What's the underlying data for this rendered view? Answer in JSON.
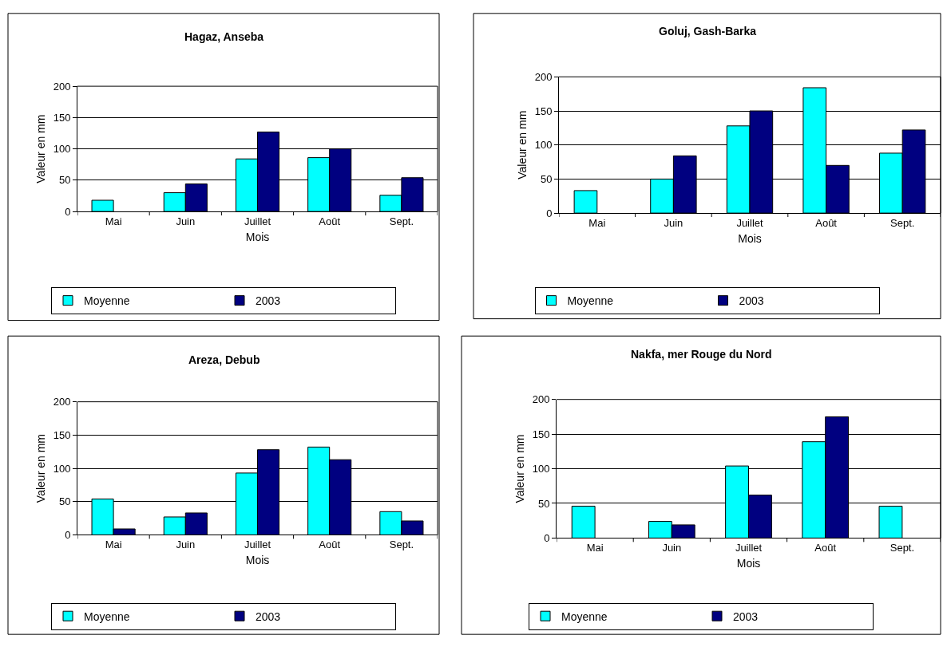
{
  "chart_data": [
    {
      "type": "bar",
      "title": "Hagaz, Anseba",
      "xlabel": "Mois",
      "ylabel": "Valeur en mm",
      "categories": [
        "Mai",
        "Juin",
        "Juillet",
        "Août",
        "Sept."
      ],
      "series": [
        {
          "name": "Moyenne",
          "color": "#00ffff",
          "values": [
            18,
            30,
            84,
            86,
            26
          ]
        },
        {
          "name": "2003",
          "color": "#000080",
          "values": [
            null,
            44,
            127,
            100,
            54
          ]
        }
      ],
      "ylim": [
        0,
        200
      ],
      "yticks": [
        0,
        50,
        100,
        150,
        200
      ],
      "grid": "y",
      "legend": "bottom"
    },
    {
      "type": "bar",
      "title": "Goluj, Gash-Barka",
      "xlabel": "Mois",
      "ylabel": "Valeur en mm",
      "categories": [
        "Mai",
        "Juin",
        "Juillet",
        "Août",
        "Sept."
      ],
      "series": [
        {
          "name": "Moyenne",
          "color": "#00ffff",
          "values": [
            33,
            50,
            128,
            184,
            88
          ]
        },
        {
          "name": "2003",
          "color": "#000080",
          "values": [
            null,
            84,
            150,
            70,
            122
          ]
        }
      ],
      "ylim": [
        0,
        200
      ],
      "yticks": [
        0,
        50,
        100,
        150,
        200
      ],
      "grid": "y",
      "legend": "bottom"
    },
    {
      "type": "bar",
      "title": "Areza, Debub",
      "xlabel": "Mois",
      "ylabel": "Valeur en mm",
      "categories": [
        "Mai",
        "Juin",
        "Juillet",
        "Août",
        "Sept."
      ],
      "series": [
        {
          "name": "Moyenne",
          "color": "#00ffff",
          "values": [
            54,
            27,
            93,
            132,
            35
          ]
        },
        {
          "name": "2003",
          "color": "#000080",
          "values": [
            9,
            33,
            128,
            113,
            21
          ]
        }
      ],
      "ylim": [
        0,
        200
      ],
      "yticks": [
        0,
        50,
        100,
        150,
        200
      ],
      "grid": "y",
      "legend": "bottom"
    },
    {
      "type": "bar",
      "title": "Nakfa, mer Rouge du Nord",
      "xlabel": "Mois",
      "ylabel": "Valeur en mm",
      "categories": [
        "Mai",
        "Juin",
        "Juillet",
        "Août",
        "Sept."
      ],
      "series": [
        {
          "name": "Moyenne",
          "color": "#00ffff",
          "values": [
            46,
            24,
            104,
            139,
            46
          ]
        },
        {
          "name": "2003",
          "color": "#000080",
          "values": [
            null,
            19,
            62,
            175,
            null
          ]
        }
      ],
      "ylim": [
        0,
        200
      ],
      "yticks": [
        0,
        50,
        100,
        150,
        200
      ],
      "grid": "y",
      "legend": "bottom"
    }
  ]
}
